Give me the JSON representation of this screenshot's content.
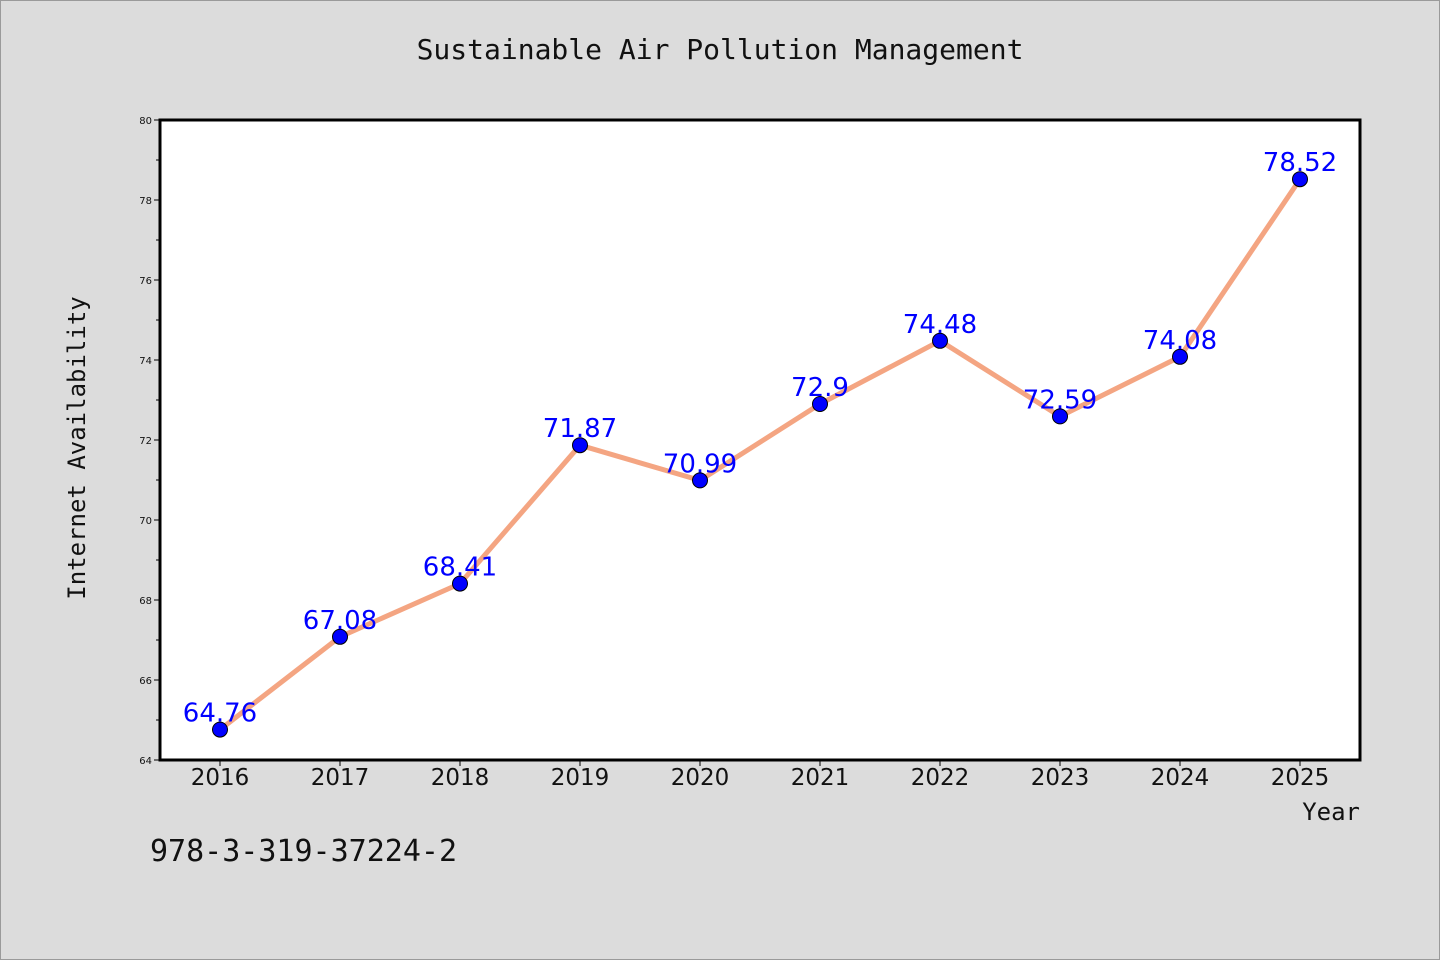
{
  "title": "Sustainable Air Pollution Management",
  "footer_text": "978-3-319-37224-2",
  "colors": {
    "background": "#dcdcdc",
    "plot_background": "#ffffff",
    "line": "#f4a582",
    "marker": "#0000ff",
    "data_label": "#0000ff"
  },
  "chart_data": {
    "type": "line",
    "title": "Sustainable Air Pollution Management",
    "xlabel": "Year",
    "ylabel": "Internet Availability",
    "categories": [
      "2016",
      "2017",
      "2018",
      "2019",
      "2020",
      "2021",
      "2022",
      "2023",
      "2024",
      "2025"
    ],
    "series": [
      {
        "values": [
          64.76,
          67.08,
          68.41,
          71.87,
          70.99,
          72.9,
          74.48,
          72.59,
          74.08,
          78.52
        ],
        "labels": [
          "64.76",
          "67.08",
          "68.41",
          "71.87",
          "70.99",
          "72.9",
          "74.48",
          "72.59",
          "74.08",
          "78.52"
        ]
      }
    ],
    "ylim": [
      64,
      80
    ],
    "yticks": [
      "64",
      "66",
      "68",
      "70",
      "72",
      "74",
      "76",
      "78",
      "80"
    ],
    "grid": false,
    "legend": "none"
  }
}
